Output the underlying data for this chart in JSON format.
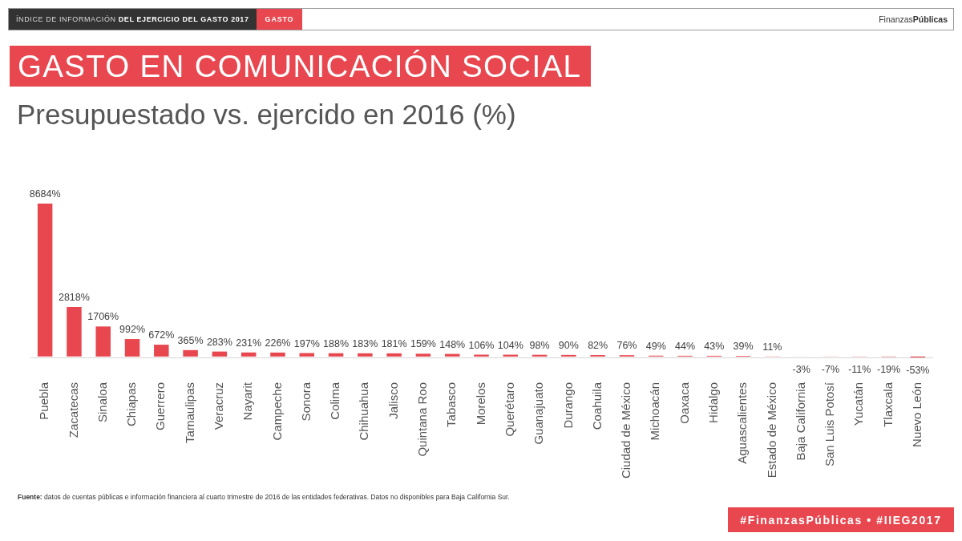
{
  "chart_data": {
    "type": "bar",
    "title": "GASTO EN COMUNICACIÓN SOCIAL",
    "subtitle": "Presupuestado vs. ejercido en 2016 (%)",
    "categories": [
      "Puebla",
      "Zacatecas",
      "Sinaloa",
      "Chiapas",
      "Guerrero",
      "Tamaulipas",
      "Veracruz",
      "Nayarit",
      "Campeche",
      "Sonora",
      "Colima",
      "Chihuahua",
      "Jalisco",
      "Quintana Roo",
      "Tabasco",
      "Morelos",
      "Querétaro",
      "Guanajuato",
      "Durango",
      "Coahuila",
      "Ciudad de México",
      "Michoacán",
      "Oaxaca",
      "Hidalgo",
      "Aguascalientes",
      "Estado de México",
      "Baja California",
      "San Luis Potosí",
      "Yucatán",
      "Tlaxcala",
      "Nuevo León"
    ],
    "values": [
      8684,
      2818,
      1706,
      992,
      672,
      365,
      283,
      231,
      226,
      197,
      188,
      183,
      181,
      159,
      148,
      106,
      104,
      98,
      90,
      82,
      76,
      49,
      44,
      43,
      39,
      11,
      -3,
      -7,
      -11,
      -19,
      -53
    ],
    "value_labels": [
      "8684%",
      "2818%",
      "1706%",
      "992%",
      "672%",
      "365%",
      "283%",
      "231%",
      "226%",
      "197%",
      "188%",
      "183%",
      "181%",
      "159%",
      "148%",
      "106%",
      "104%",
      "98%",
      "90%",
      "82%",
      "76%",
      "49%",
      "44%",
      "43%",
      "39%",
      "11%",
      "-3%",
      "-7%",
      "-11%",
      "-19%",
      "-53%"
    ],
    "color": "#e8474f",
    "tick_labels": "x",
    "annotations": [
      "ÍNDICE DE INFORMACIÓN",
      "DEL EJERCICIO DEL GASTO 2017",
      "GASTO",
      "FinanzasPúblicas",
      "Fuente: datos de cuentas públicas e información financiera al cuarto trimestre de 2016 de las entidades federativas. Datos no disponibles para Baja California Sur.",
      "#FinanzasPúblicas • #IIEG2017"
    ]
  }
}
